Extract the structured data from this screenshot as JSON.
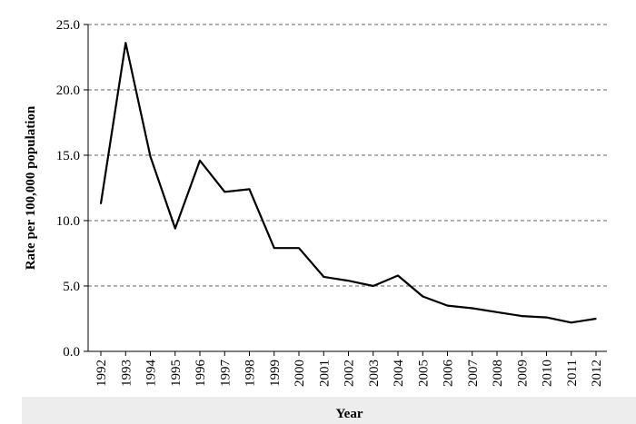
{
  "chart_data": {
    "type": "line",
    "xlabel": "Year",
    "ylabel": "Rate per 100,000 population",
    "ylim": [
      0,
      25
    ],
    "yticks": [
      "0.0",
      "5.0",
      "10.0",
      "15.0",
      "20.0",
      "25.0"
    ],
    "categories": [
      "1992",
      "1993",
      "1994",
      "1995",
      "1996",
      "1997",
      "1998",
      "1999",
      "2000",
      "2001",
      "2002",
      "2003",
      "2004",
      "2005",
      "2006",
      "2007",
      "2008",
      "2009",
      "2010",
      "2011",
      "2012"
    ],
    "series": [
      {
        "values": [
          11.3,
          23.6,
          14.9,
          9.4,
          14.6,
          12.2,
          12.4,
          7.9,
          7.9,
          5.7,
          5.4,
          5.0,
          5.8,
          4.2,
          3.5,
          3.3,
          3.0,
          2.7,
          2.6,
          2.2,
          2.5
        ]
      }
    ],
    "grid": "horizontal dashed",
    "colors": {
      "line": "#000000",
      "grid": "#666666",
      "axis": "#000000"
    }
  }
}
